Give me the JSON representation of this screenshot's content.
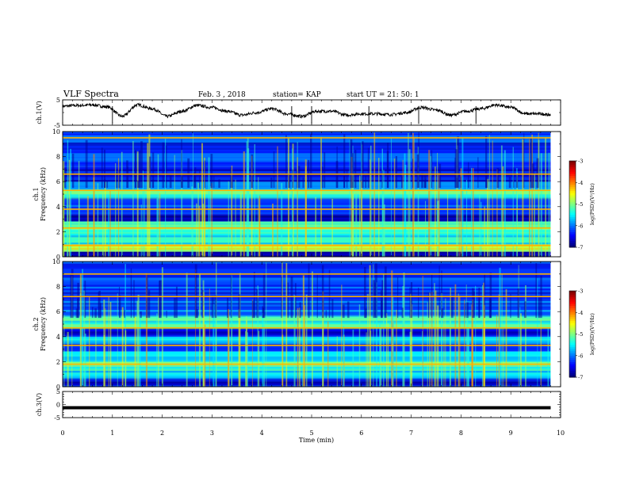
{
  "header": {
    "title": "VLF Spectra",
    "date": "Feb. 3 , 2018",
    "station": "station= KAP",
    "start": "start UT = 21: 50: 1"
  },
  "chart_data": [
    {
      "type": "line",
      "name": "ch1-voltage",
      "ylabel": "ch.1(V)",
      "xlim": [
        0,
        10
      ],
      "ylim": [
        -5,
        5
      ],
      "yticks": [
        "5",
        "-5"
      ],
      "x": [
        0,
        0.3,
        0.6,
        0.9,
        1.2,
        1.5,
        1.8,
        2.1,
        2.4,
        2.7,
        3.0,
        3.3,
        3.6,
        3.9,
        4.2,
        4.5,
        4.8,
        5.1,
        5.4,
        5.7,
        6.0,
        6.3,
        6.6,
        6.9,
        7.2,
        7.5,
        7.8,
        8.1,
        8.4,
        8.7,
        9.0,
        9.3,
        9.6,
        9.8
      ],
      "y": [
        2.5,
        2.8,
        3.0,
        2.2,
        -1.5,
        3.0,
        1.5,
        -1.5,
        0.5,
        2.8,
        2.0,
        0.5,
        -1.0,
        0.0,
        1.5,
        -0.5,
        -1.5,
        0.5,
        0.5,
        -1.0,
        -0.5,
        -0.5,
        -0.8,
        0.0,
        2.0,
        1.0,
        -1.0,
        0.5,
        1.5,
        3.0,
        2.0,
        -0.5,
        -0.5,
        -1.0
      ]
    },
    {
      "type": "heatmap",
      "name": "ch1-spectrogram",
      "ylabel": "ch.1\nFrequency (kHz)",
      "xlim": [
        0,
        10
      ],
      "ylim": [
        0,
        10
      ],
      "yticks": [
        "0",
        "2",
        "4",
        "6",
        "8",
        "10"
      ],
      "colorbar": {
        "label": "log(PSD)(V²/Hz)",
        "range": [
          -7,
          -3
        ],
        "ticks": [
          "-3",
          "-4",
          "-5",
          "-6",
          "-7"
        ]
      },
      "bands": [
        {
          "from": 0.0,
          "to": 0.4,
          "level": -6.8
        },
        {
          "from": 0.4,
          "to": 1.0,
          "level": -4.8
        },
        {
          "from": 1.0,
          "to": 2.2,
          "level": -5.4
        },
        {
          "from": 2.2,
          "to": 2.8,
          "level": -5.0
        },
        {
          "from": 2.8,
          "to": 3.4,
          "level": -6.9
        },
        {
          "from": 3.4,
          "to": 4.6,
          "level": -6.2
        },
        {
          "from": 4.6,
          "to": 5.4,
          "level": -5.3
        },
        {
          "from": 5.4,
          "to": 6.0,
          "level": -6.0
        },
        {
          "from": 6.0,
          "to": 7.2,
          "level": -6.6
        },
        {
          "from": 7.2,
          "to": 10.0,
          "level": -6.3
        }
      ],
      "lines": [
        0.9,
        2.3,
        3.8,
        5.3,
        6.6,
        9.5
      ]
    },
    {
      "type": "heatmap",
      "name": "ch2-spectrogram",
      "ylabel": "ch.2\nFrequency (kHz)",
      "xlim": [
        0,
        10
      ],
      "ylim": [
        0,
        10
      ],
      "yticks": [
        "0",
        "2",
        "4",
        "6",
        "8",
        "10"
      ],
      "colorbar": {
        "label": "log(PSD)(V²/Hz)",
        "range": [
          -7,
          -3
        ],
        "ticks": [
          "-3",
          "-4",
          "-5",
          "-6",
          "-7"
        ]
      },
      "bands": [
        {
          "from": 0.0,
          "to": 0.6,
          "level": -6.7
        },
        {
          "from": 0.6,
          "to": 1.6,
          "level": -5.6
        },
        {
          "from": 1.6,
          "to": 2.0,
          "level": -4.7
        },
        {
          "from": 2.0,
          "to": 2.8,
          "level": -5.6
        },
        {
          "from": 2.8,
          "to": 3.4,
          "level": -6.4
        },
        {
          "from": 3.4,
          "to": 4.0,
          "level": -5.6
        },
        {
          "from": 4.0,
          "to": 4.6,
          "level": -6.6
        },
        {
          "from": 4.6,
          "to": 5.6,
          "level": -5.3
        },
        {
          "from": 5.6,
          "to": 7.0,
          "level": -6.1
        },
        {
          "from": 7.0,
          "to": 10.0,
          "level": -6.3
        }
      ],
      "lines": [
        1.8,
        3.3,
        4.7,
        7.2,
        9.0
      ]
    },
    {
      "type": "line",
      "name": "ch3-voltage",
      "ylabel": "ch.3(V)",
      "xlabel": "Time (min)",
      "xlim": [
        0,
        10
      ],
      "ylim": [
        -5,
        5
      ],
      "yticks": [
        "5",
        "0",
        "-5"
      ],
      "xticks": [
        "0",
        "1",
        "2",
        "3",
        "4",
        "5",
        "6",
        "7",
        "8",
        "9",
        "10"
      ],
      "x": [
        0,
        9.8
      ],
      "y": [
        -1.2,
        -1.2
      ]
    }
  ]
}
